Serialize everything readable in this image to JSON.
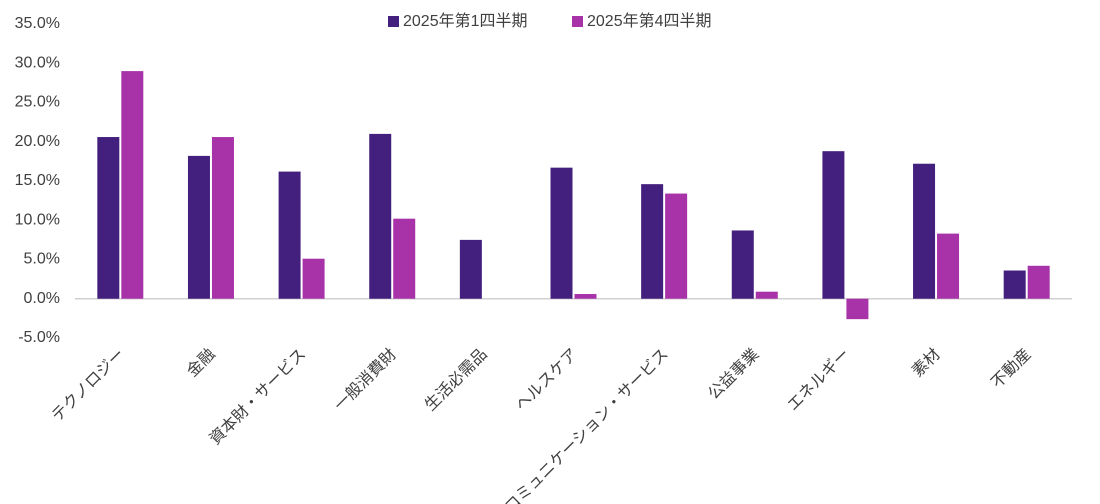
{
  "chart_data": {
    "type": "bar",
    "categories": [
      "テクノロジー",
      "金融",
      "資本財・サービス",
      "一般消費財",
      "生活必需品",
      "ヘルスケア",
      "コミュニケーション・サービス",
      "公益事業",
      "エネルギー",
      "素材",
      "不動産"
    ],
    "series": [
      {
        "name": "2025年第1四半期",
        "color": "#44207e",
        "values": [
          20.6,
          18.2,
          16.2,
          21.0,
          7.5,
          16.7,
          14.6,
          8.7,
          18.8,
          17.2,
          3.6
        ]
      },
      {
        "name": "2025年第4四半期",
        "color": "#a832a8",
        "values": [
          29.0,
          20.6,
          5.1,
          10.2,
          null,
          0.6,
          13.4,
          0.9,
          -2.6,
          8.3,
          4.2
        ]
      }
    ],
    "ylim": [
      -5,
      35
    ],
    "yticks": [
      {
        "value": -5,
        "label": "-5.0%"
      },
      {
        "value": 0,
        "label": "0.0%"
      },
      {
        "value": 5,
        "label": "5.0%"
      },
      {
        "value": 10,
        "label": "10.0%"
      },
      {
        "value": 15,
        "label": "15.0%"
      },
      {
        "value": 20,
        "label": "20.0%"
      },
      {
        "value": 25,
        "label": "25.0%"
      },
      {
        "value": 30,
        "label": "30.0%"
      },
      {
        "value": 35,
        "label": "35.0%"
      }
    ],
    "legend": "top"
  }
}
